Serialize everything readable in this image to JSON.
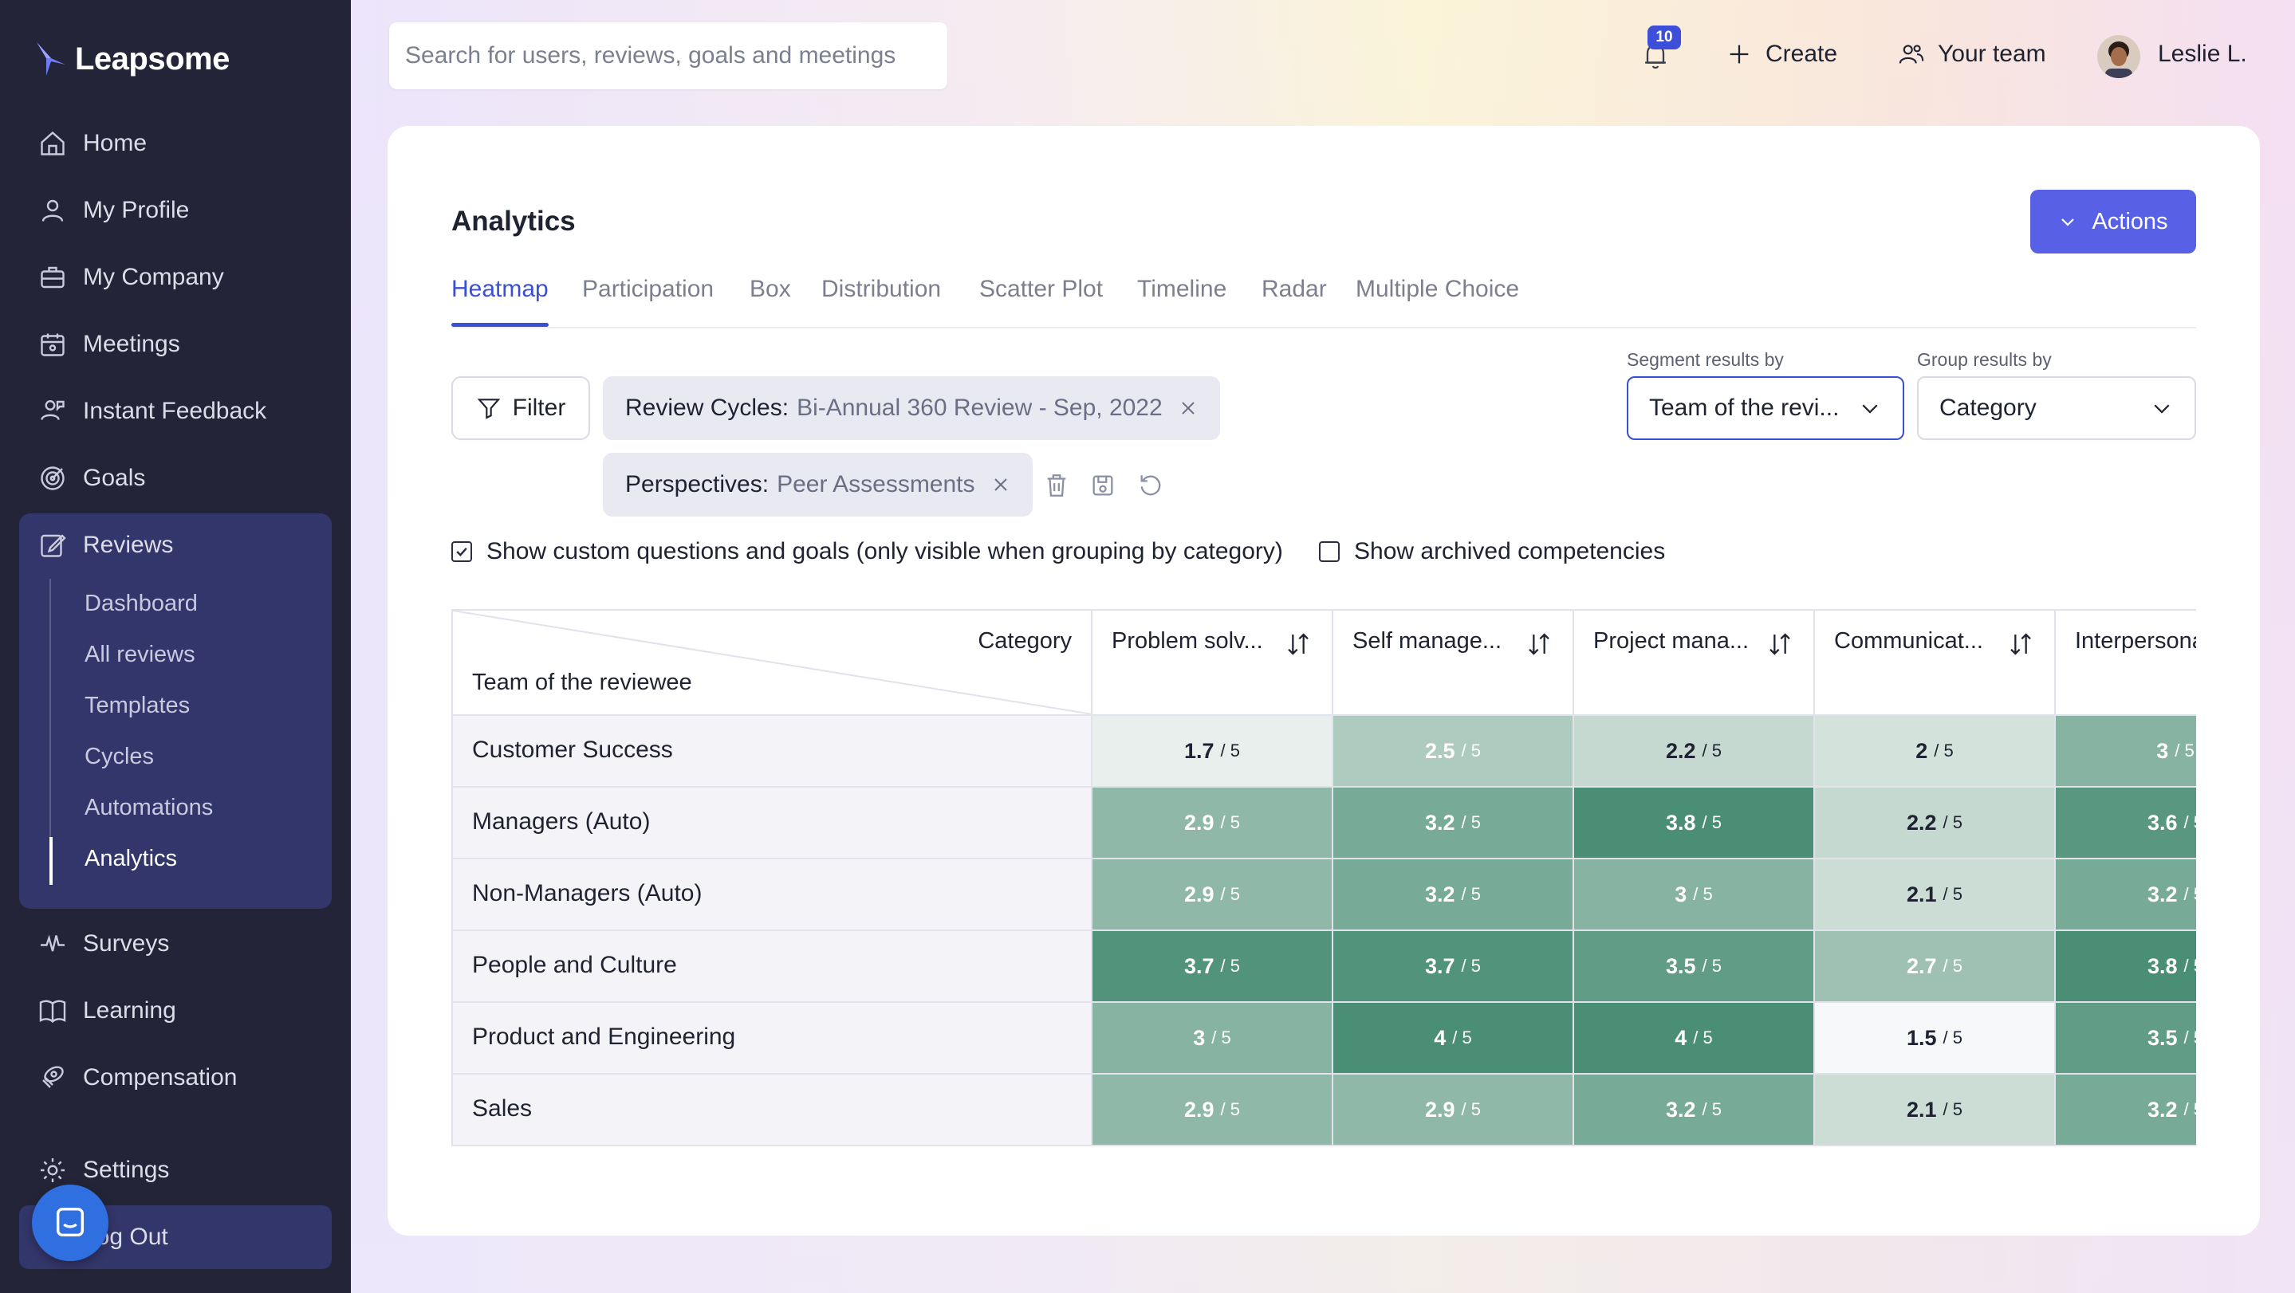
{
  "app": {
    "brand": "Leapsome"
  },
  "sidebar": {
    "items": [
      {
        "label": "Home",
        "icon": "home-icon"
      },
      {
        "label": "My Profile",
        "icon": "user-icon"
      },
      {
        "label": "My Company",
        "icon": "briefcase-icon"
      },
      {
        "label": "Meetings",
        "icon": "calendar-icon"
      },
      {
        "label": "Instant Feedback",
        "icon": "feedback-icon"
      },
      {
        "label": "Goals",
        "icon": "target-icon"
      }
    ],
    "reviews": {
      "label": "Reviews",
      "sub_items": [
        "Dashboard",
        "All reviews",
        "Templates",
        "Cycles",
        "Automations",
        "Analytics"
      ],
      "active_sub": "Analytics"
    },
    "lower_items": [
      {
        "label": "Surveys",
        "icon": "pulse-icon"
      },
      {
        "label": "Learning",
        "icon": "book-icon"
      },
      {
        "label": "Compensation",
        "icon": "coins-icon"
      }
    ],
    "settings_label": "Settings",
    "logout_label": "Log Out"
  },
  "topbar": {
    "search_placeholder": "Search for users, reviews, goals and meetings",
    "notification_count": "10",
    "create_label": "Create",
    "team_label": "Your team",
    "user_name": "Leslie L."
  },
  "page": {
    "title": "Analytics",
    "actions_label": "Actions",
    "tabs": [
      "Heatmap",
      "Participation",
      "Box",
      "Distribution",
      "Scatter Plot",
      "Timeline",
      "Radar",
      "Multiple Choice"
    ],
    "active_tab": "Heatmap"
  },
  "filters": {
    "filter_label": "Filter",
    "chips": [
      {
        "key": "Review Cycles:",
        "value": "Bi-Annual 360 Review - Sep, 2022"
      },
      {
        "key": "Perspectives:",
        "value": "Peer Assessments"
      }
    ],
    "segment_label": "Segment results by",
    "segment_value": "Team of the revi...",
    "group_label": "Group results by",
    "group_value": "Category",
    "show_custom_label": "Show custom questions and goals (only visible when grouping by category)",
    "show_custom_checked": true,
    "show_archived_label": "Show archived competencies",
    "show_archived_checked": false
  },
  "heatmap": {
    "corner_column_label": "Category",
    "corner_row_label": "Team of the reviewee",
    "scale_suffix": "/ 5",
    "columns": [
      "Problem solv...",
      "Self manage...",
      "Project mana...",
      "Communicat...",
      "Interpersona"
    ],
    "rows": [
      {
        "team": "Customer Success",
        "scores": [
          "1.7",
          "2.5",
          "2.2",
          "2",
          "3"
        ]
      },
      {
        "team": "Managers (Auto)",
        "scores": [
          "2.9",
          "3.2",
          "3.8",
          "2.2",
          "3.6"
        ]
      },
      {
        "team": "Non-Managers (Auto)",
        "scores": [
          "2.9",
          "3.2",
          "3",
          "2.1",
          "3.2"
        ]
      },
      {
        "team": "People and Culture",
        "scores": [
          "3.7",
          "3.7",
          "3.5",
          "2.7",
          "3.8"
        ]
      },
      {
        "team": "Product and Engineering",
        "scores": [
          "3",
          "4",
          "4",
          "1.5",
          "3.5"
        ]
      },
      {
        "team": "Sales",
        "scores": [
          "2.9",
          "2.9",
          "3.2",
          "2.1",
          "3.2"
        ]
      }
    ],
    "colors": {
      "low": "#f7f8f9",
      "mid": "#d4e2dc",
      "high": "#4a8e76",
      "accent": "#5860e6"
    }
  }
}
